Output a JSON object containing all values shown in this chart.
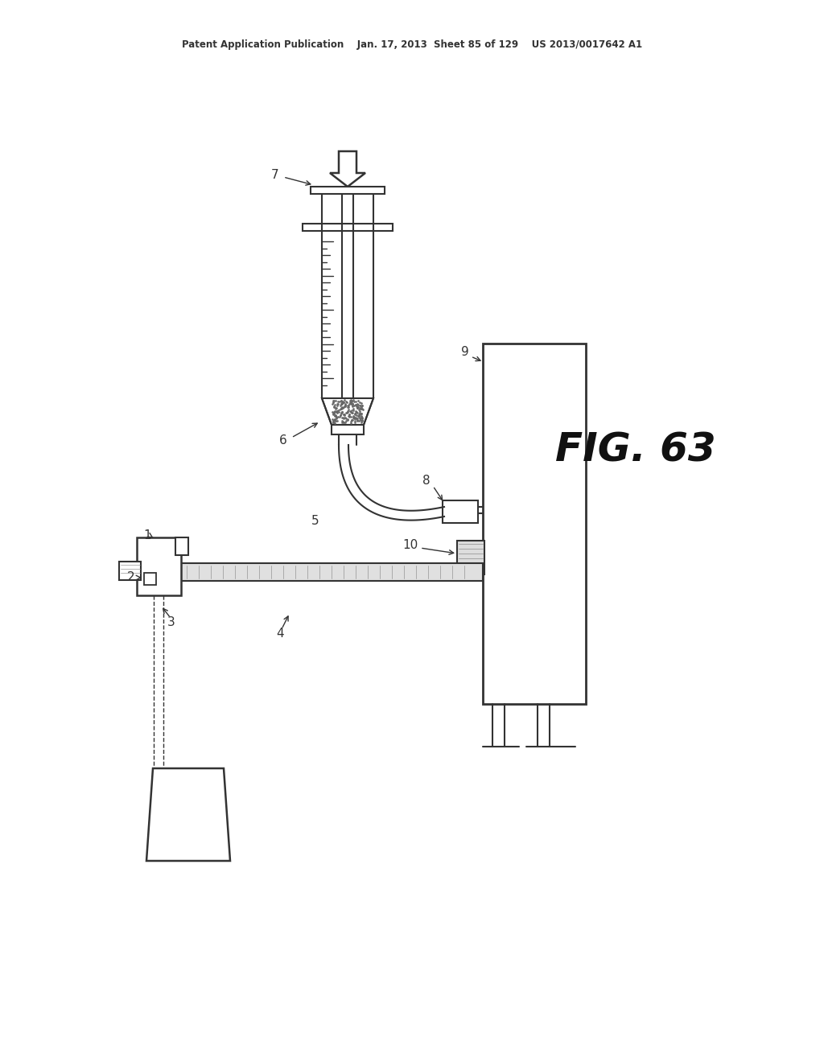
{
  "bg_color": "#ffffff",
  "line_color": "#333333",
  "gray_color": "#999999",
  "header": "Patent Application Publication    Jan. 17, 2013  Sheet 85 of 129    US 2013/0017642 A1",
  "fig_label": "FIG. 63"
}
